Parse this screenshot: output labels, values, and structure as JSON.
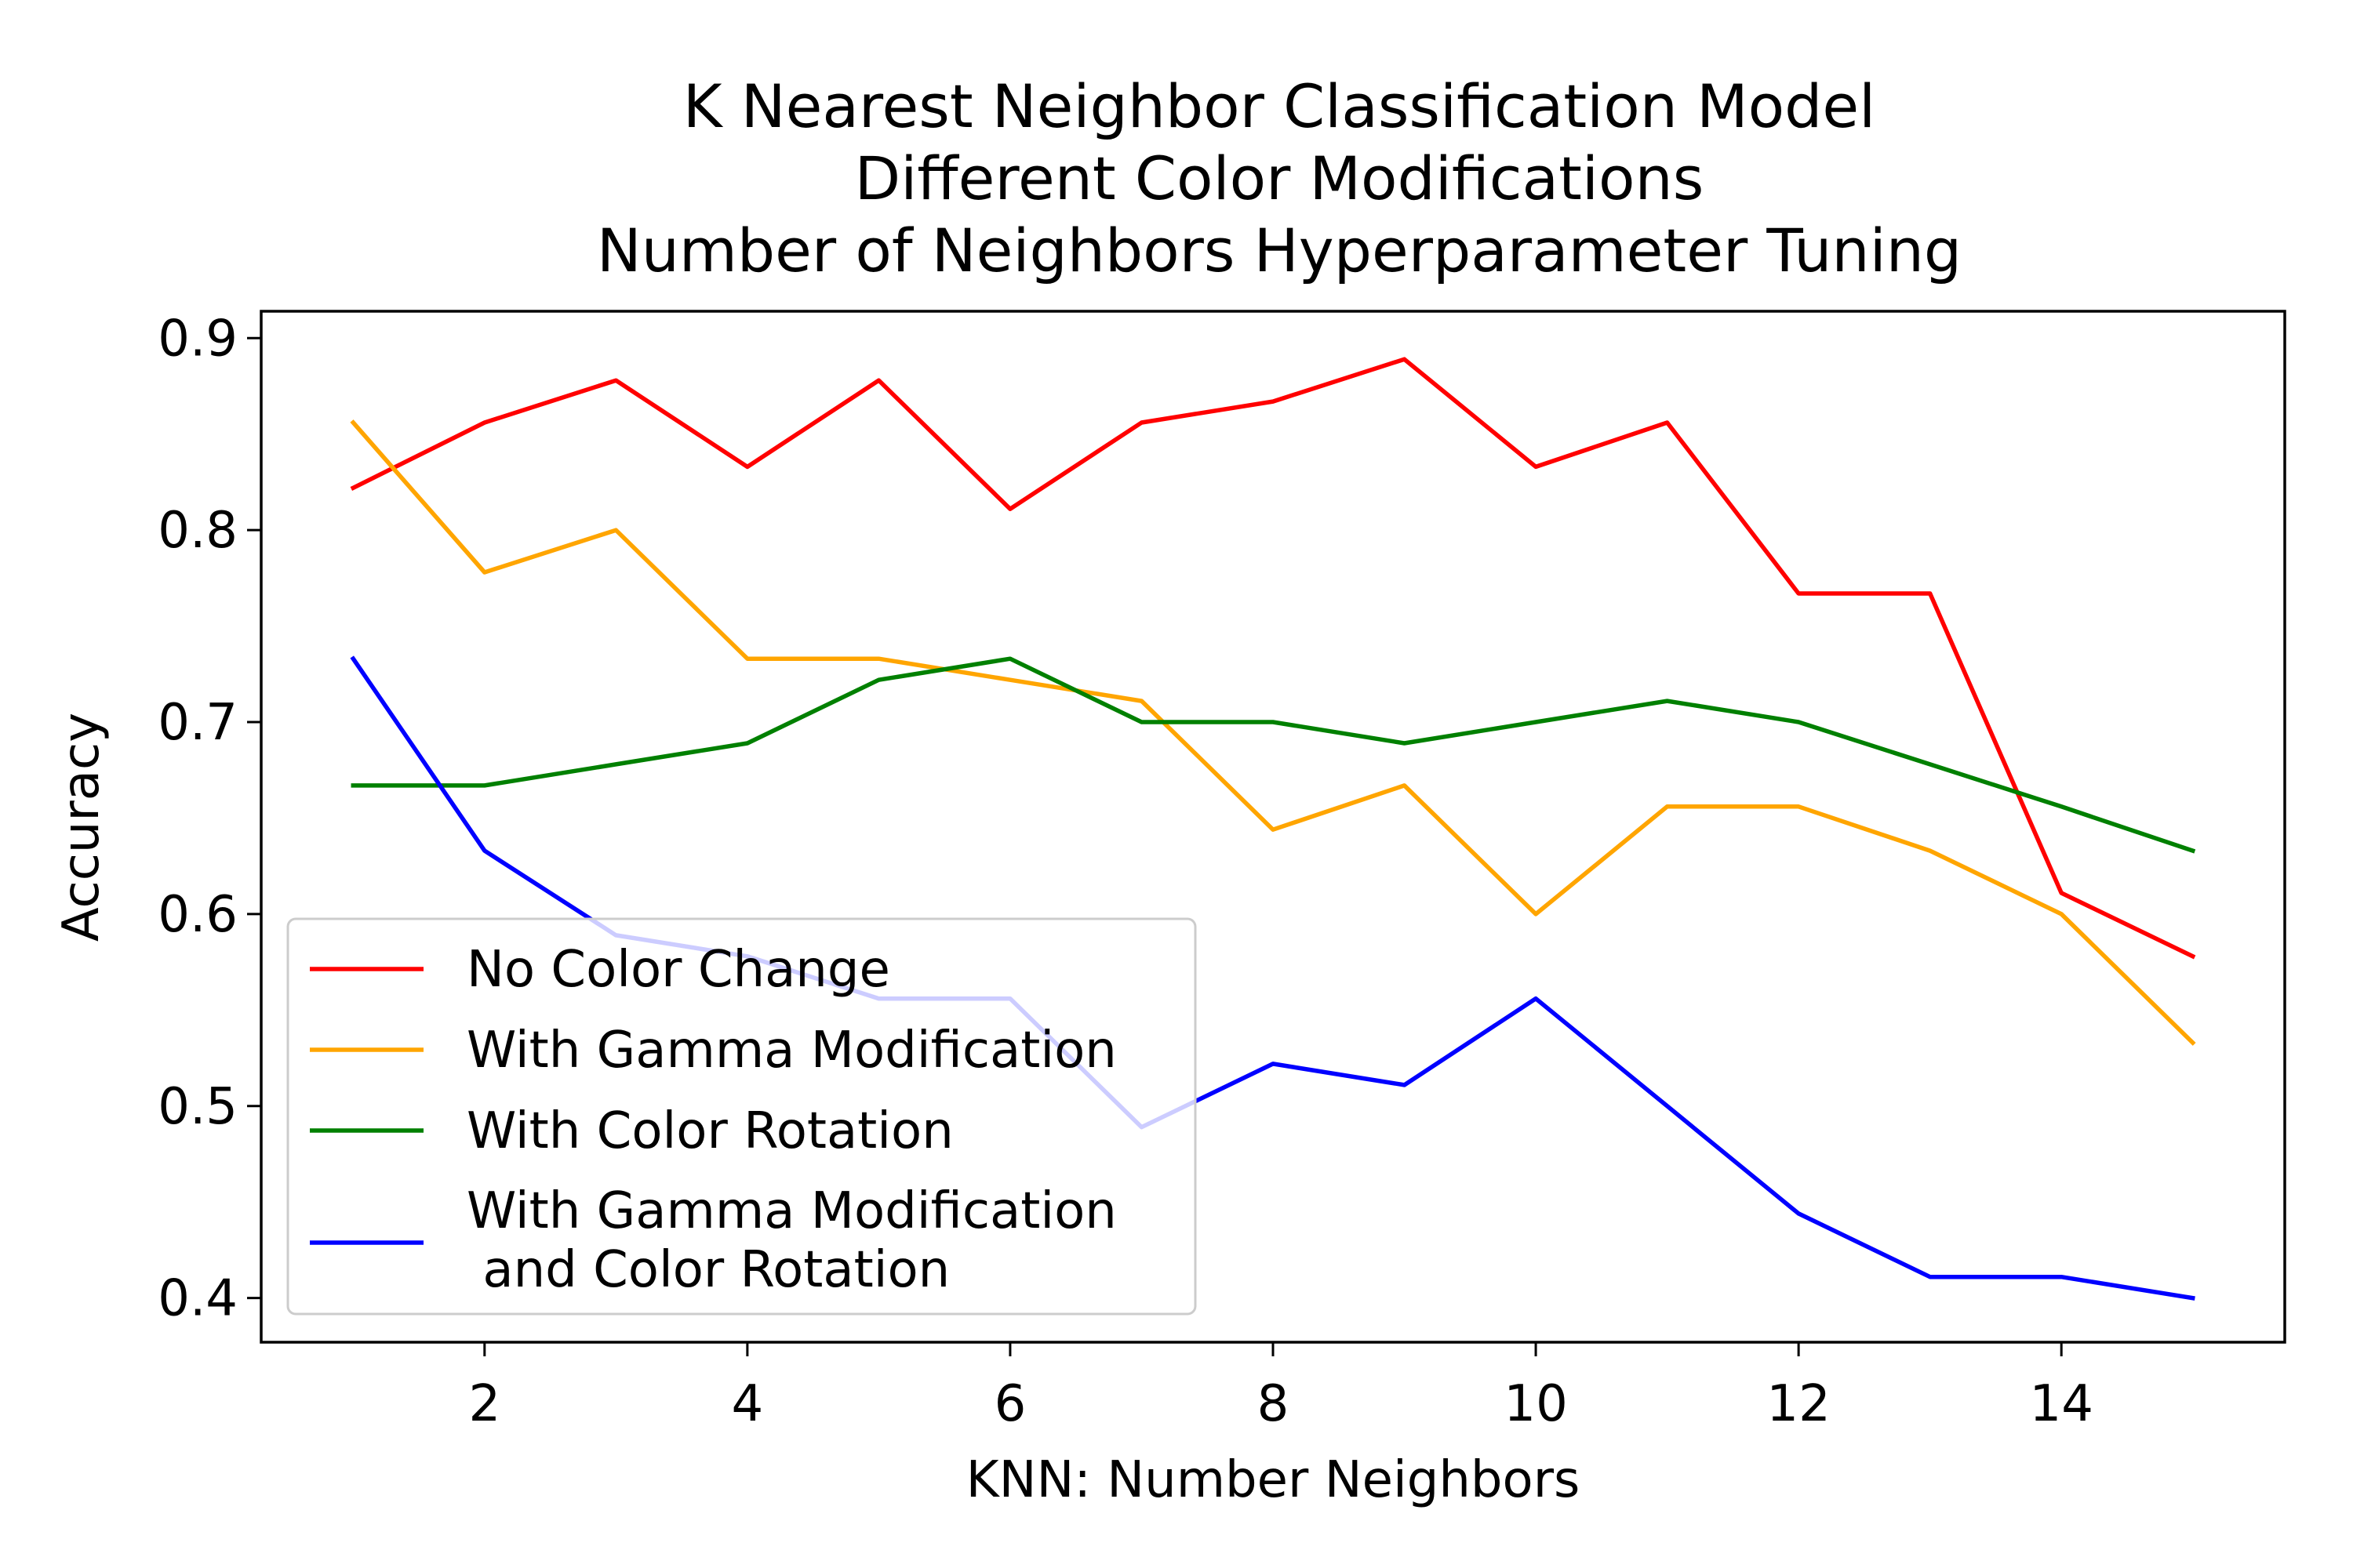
{
  "chart_data": {
    "type": "line",
    "title_lines": [
      "K Nearest Neighbor Classification Model",
      "Different Color Modifications",
      "Number of Neighbors Hyperparameter Tuning"
    ],
    "xlabel": "KNN: Number Neighbors",
    "ylabel": "Accuracy",
    "xlim": [
      0.3,
      15.7
    ],
    "ylim": [
      0.377,
      0.914
    ],
    "x_ticks": [
      2,
      4,
      6,
      8,
      10,
      12,
      14
    ],
    "x_tick_labels": [
      "2",
      "4",
      "6",
      "8",
      "10",
      "12",
      "14"
    ],
    "y_ticks": [
      0.4,
      0.5,
      0.6,
      0.7,
      0.8,
      0.9
    ],
    "y_tick_labels": [
      "0.4",
      "0.5",
      "0.6",
      "0.7",
      "0.8",
      "0.9"
    ],
    "grid": false,
    "legend_position": "lower-left",
    "x": [
      1,
      2,
      3,
      4,
      5,
      6,
      7,
      8,
      9,
      10,
      11,
      12,
      13,
      14,
      15
    ],
    "series": [
      {
        "name": "No Color Change",
        "color": "#ff0000",
        "values": [
          0.822,
          0.856,
          0.878,
          0.833,
          0.878,
          0.811,
          0.856,
          0.867,
          0.889,
          0.833,
          0.856,
          0.767,
          0.767,
          0.611,
          0.578
        ]
      },
      {
        "name": "With Gamma Modification",
        "color": "#ffa500",
        "values": [
          0.856,
          0.778,
          0.8,
          0.733,
          0.733,
          0.722,
          0.711,
          0.644,
          0.667,
          0.6,
          0.656,
          0.656,
          0.633,
          0.6,
          0.533
        ]
      },
      {
        "name": "With Color Rotation",
        "color": "#008000",
        "values": [
          0.667,
          0.667,
          0.678,
          0.689,
          0.722,
          0.733,
          0.7,
          0.7,
          0.689,
          0.7,
          0.711,
          0.7,
          0.678,
          0.656,
          0.633
        ]
      },
      {
        "name": "With Gamma Modification\n and Color Rotation",
        "color": "#0000ff",
        "values": [
          0.733,
          0.633,
          0.589,
          0.578,
          0.556,
          0.556,
          0.489,
          0.522,
          0.511,
          0.556,
          0.5,
          0.444,
          0.411,
          0.411,
          0.4
        ]
      }
    ]
  }
}
